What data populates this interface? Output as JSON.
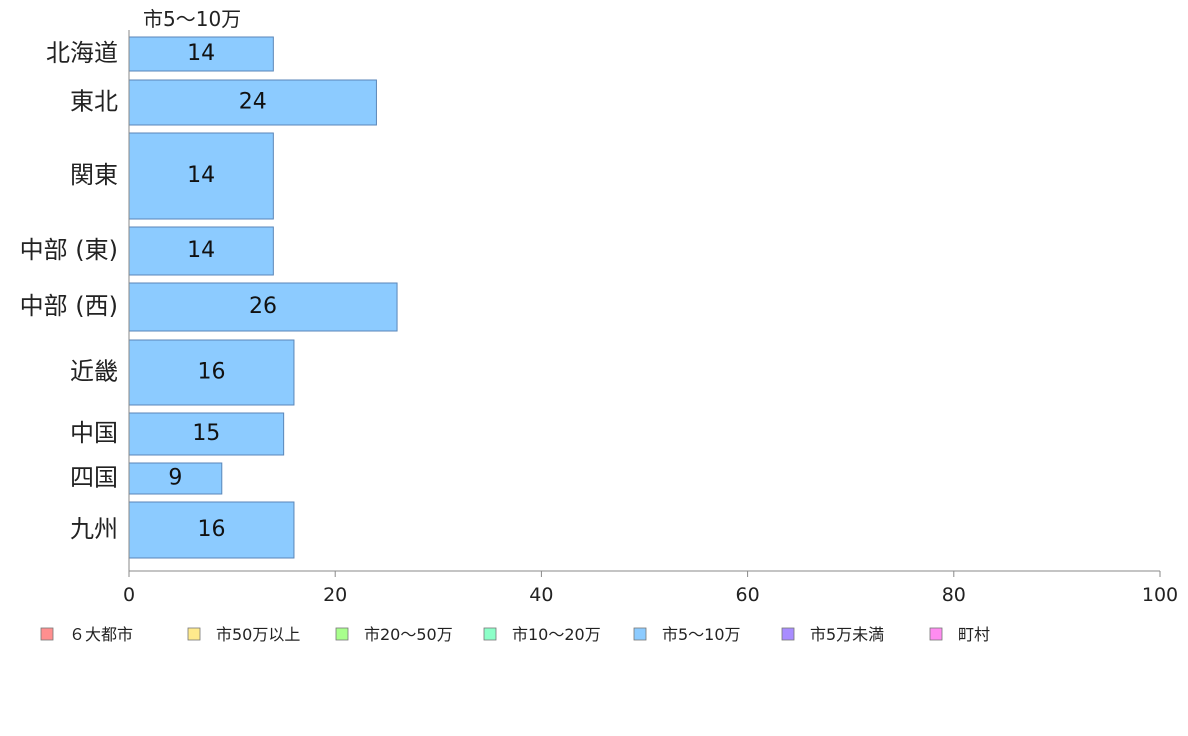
{
  "chart_data": {
    "type": "bar",
    "orientation": "horizontal",
    "series_title": "市5〜10万",
    "categories": [
      "北海道",
      "東北",
      "関東",
      "中部 (東)",
      "中部 (西)",
      "近畿",
      "中国",
      "四国",
      "九州"
    ],
    "series": [
      {
        "name": "市5〜10万",
        "values": [
          14,
          24,
          14,
          14,
          26,
          16,
          15,
          9,
          16
        ],
        "color": "#8ccbff"
      }
    ],
    "xlim": [
      0,
      100
    ],
    "xticks": [
      0,
      20,
      40,
      60,
      80,
      100
    ],
    "grid": false,
    "legend_position": "bottom",
    "legend": [
      {
        "name": "６大都市",
        "color": "#ff8f8f"
      },
      {
        "name": "市50万以上",
        "color": "#ffea8c"
      },
      {
        "name": "市20〜50万",
        "color": "#a8ff8c"
      },
      {
        "name": "市10〜20万",
        "color": "#8cffc8"
      },
      {
        "name": "市5〜10万",
        "color": "#8ccbff"
      },
      {
        "name": "市5万未満",
        "color": "#a88cff"
      },
      {
        "name": "町村",
        "color": "#ff8cf0"
      }
    ]
  }
}
